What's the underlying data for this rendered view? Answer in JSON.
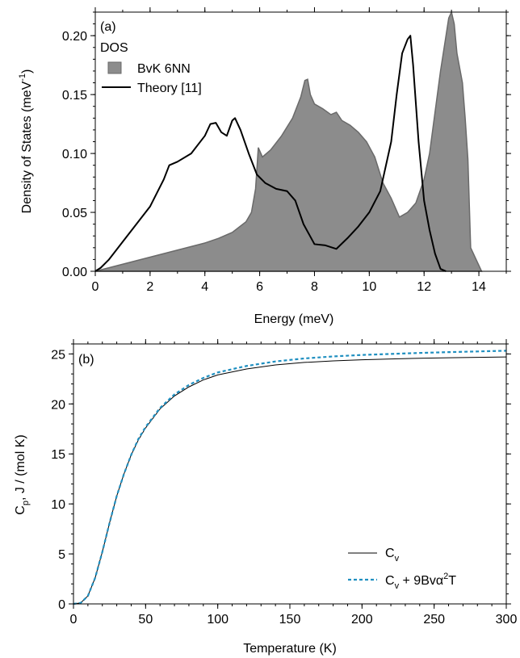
{
  "chart_data": [
    {
      "type": "area",
      "panel_label": "(a)",
      "xlabel": "Energy (meV)",
      "ylabel": "Density of States (meV",
      "ylabel_sup": "-1",
      "ylabel_tail": ")",
      "xlim": [
        0,
        15
      ],
      "ylim": [
        0,
        0.22
      ],
      "xticks": [
        0,
        2,
        4,
        6,
        8,
        10,
        12,
        14
      ],
      "yticks": [
        0.0,
        0.05,
        0.1,
        0.15,
        0.2
      ],
      "ytick_labels": [
        "0.00",
        "0.05",
        "0.10",
        "0.15",
        "0.20"
      ],
      "grid": false,
      "legend_title": "DOS",
      "legend_position": "top-left",
      "series": [
        {
          "name": "BvK 6NN",
          "style": "filled",
          "fill_color": "#8c8c8c",
          "edge_color": "#6a6a6a",
          "x": [
            0,
            0.5,
            1,
            1.5,
            2,
            2.5,
            3,
            3.5,
            4,
            4.5,
            5,
            5.5,
            5.7,
            5.85,
            5.95,
            6.1,
            6.4,
            6.8,
            7.2,
            7.5,
            7.65,
            7.75,
            7.85,
            8.0,
            8.3,
            8.6,
            8.8,
            9.0,
            9.3,
            9.6,
            9.9,
            10.2,
            10.5,
            10.8,
            11.1,
            11.4,
            11.7,
            12.0,
            12.2,
            12.4,
            12.6,
            12.8,
            12.9,
            13.0,
            13.1,
            13.2,
            13.4,
            13.5,
            13.6,
            13.7,
            13.9,
            14.1
          ],
          "y": [
            0.0,
            0.003,
            0.006,
            0.009,
            0.012,
            0.015,
            0.018,
            0.021,
            0.024,
            0.028,
            0.033,
            0.042,
            0.05,
            0.07,
            0.105,
            0.097,
            0.103,
            0.115,
            0.13,
            0.148,
            0.162,
            0.163,
            0.15,
            0.142,
            0.138,
            0.133,
            0.135,
            0.128,
            0.124,
            0.118,
            0.11,
            0.097,
            0.075,
            0.062,
            0.046,
            0.05,
            0.058,
            0.078,
            0.1,
            0.135,
            0.17,
            0.2,
            0.215,
            0.22,
            0.21,
            0.185,
            0.16,
            0.13,
            0.095,
            0.02,
            0.01,
            0.0
          ]
        },
        {
          "name": "Theory [11]",
          "style": "line",
          "color": "#000000",
          "x": [
            0,
            0.2,
            0.5,
            1,
            1.5,
            2,
            2.5,
            2.7,
            3,
            3.5,
            4,
            4.2,
            4.4,
            4.6,
            4.8,
            5.0,
            5.1,
            5.3,
            5.6,
            5.9,
            6.2,
            6.6,
            7.0,
            7.3,
            7.6,
            8.0,
            8.4,
            8.8,
            9.2,
            9.6,
            10.0,
            10.4,
            10.8,
            11.0,
            11.2,
            11.4,
            11.5,
            11.6,
            11.8,
            12.0,
            12.2,
            12.4,
            12.6,
            12.8
          ],
          "y": [
            0.0,
            0.003,
            0.01,
            0.025,
            0.04,
            0.055,
            0.078,
            0.09,
            0.093,
            0.1,
            0.115,
            0.125,
            0.126,
            0.118,
            0.115,
            0.128,
            0.13,
            0.12,
            0.1,
            0.082,
            0.075,
            0.07,
            0.068,
            0.06,
            0.04,
            0.023,
            0.022,
            0.019,
            0.028,
            0.038,
            0.05,
            0.068,
            0.11,
            0.15,
            0.185,
            0.197,
            0.2,
            0.175,
            0.11,
            0.06,
            0.035,
            0.015,
            0.002,
            0.0
          ]
        }
      ]
    },
    {
      "type": "line",
      "panel_label": "(b)",
      "xlabel": "Temperature (K)",
      "ylabel": "C",
      "ylabel_sub": "p",
      "ylabel_tail": ", J / (mol K)",
      "xlim": [
        0,
        300
      ],
      "ylim": [
        0,
        26
      ],
      "xticks": [
        0,
        50,
        100,
        150,
        200,
        250,
        300
      ],
      "yticks": [
        0,
        5,
        10,
        15,
        20,
        25
      ],
      "grid": false,
      "legend_position": "bottom-right",
      "series": [
        {
          "name": "C",
          "name_sub": "v",
          "style": "solid",
          "color": "#000000",
          "x": [
            0,
            5,
            10,
            15,
            20,
            25,
            30,
            35,
            40,
            45,
            50,
            60,
            70,
            80,
            90,
            100,
            120,
            140,
            160,
            180,
            200,
            220,
            240,
            260,
            280,
            300
          ],
          "y": [
            0,
            0.1,
            0.8,
            2.6,
            5.2,
            8.1,
            10.8,
            13.0,
            14.9,
            16.4,
            17.6,
            19.5,
            20.8,
            21.7,
            22.4,
            22.9,
            23.5,
            23.9,
            24.15,
            24.3,
            24.42,
            24.5,
            24.57,
            24.62,
            24.66,
            24.7
          ]
        },
        {
          "name": "C",
          "name_sub": "v",
          "name_tail": " + 9Bvα",
          "name_sup": "2",
          "name_end": "T",
          "style": "dashed",
          "color": "#1f8fc0",
          "x": [
            0,
            5,
            10,
            15,
            20,
            25,
            30,
            35,
            40,
            45,
            50,
            60,
            70,
            80,
            90,
            100,
            120,
            140,
            160,
            180,
            200,
            220,
            240,
            260,
            280,
            300
          ],
          "y": [
            0,
            0.1,
            0.8,
            2.6,
            5.2,
            8.1,
            10.8,
            13.0,
            14.9,
            16.5,
            17.7,
            19.6,
            20.95,
            21.9,
            22.6,
            23.15,
            23.8,
            24.25,
            24.55,
            24.75,
            24.9,
            25.0,
            25.1,
            25.18,
            25.25,
            25.32
          ]
        }
      ]
    }
  ]
}
